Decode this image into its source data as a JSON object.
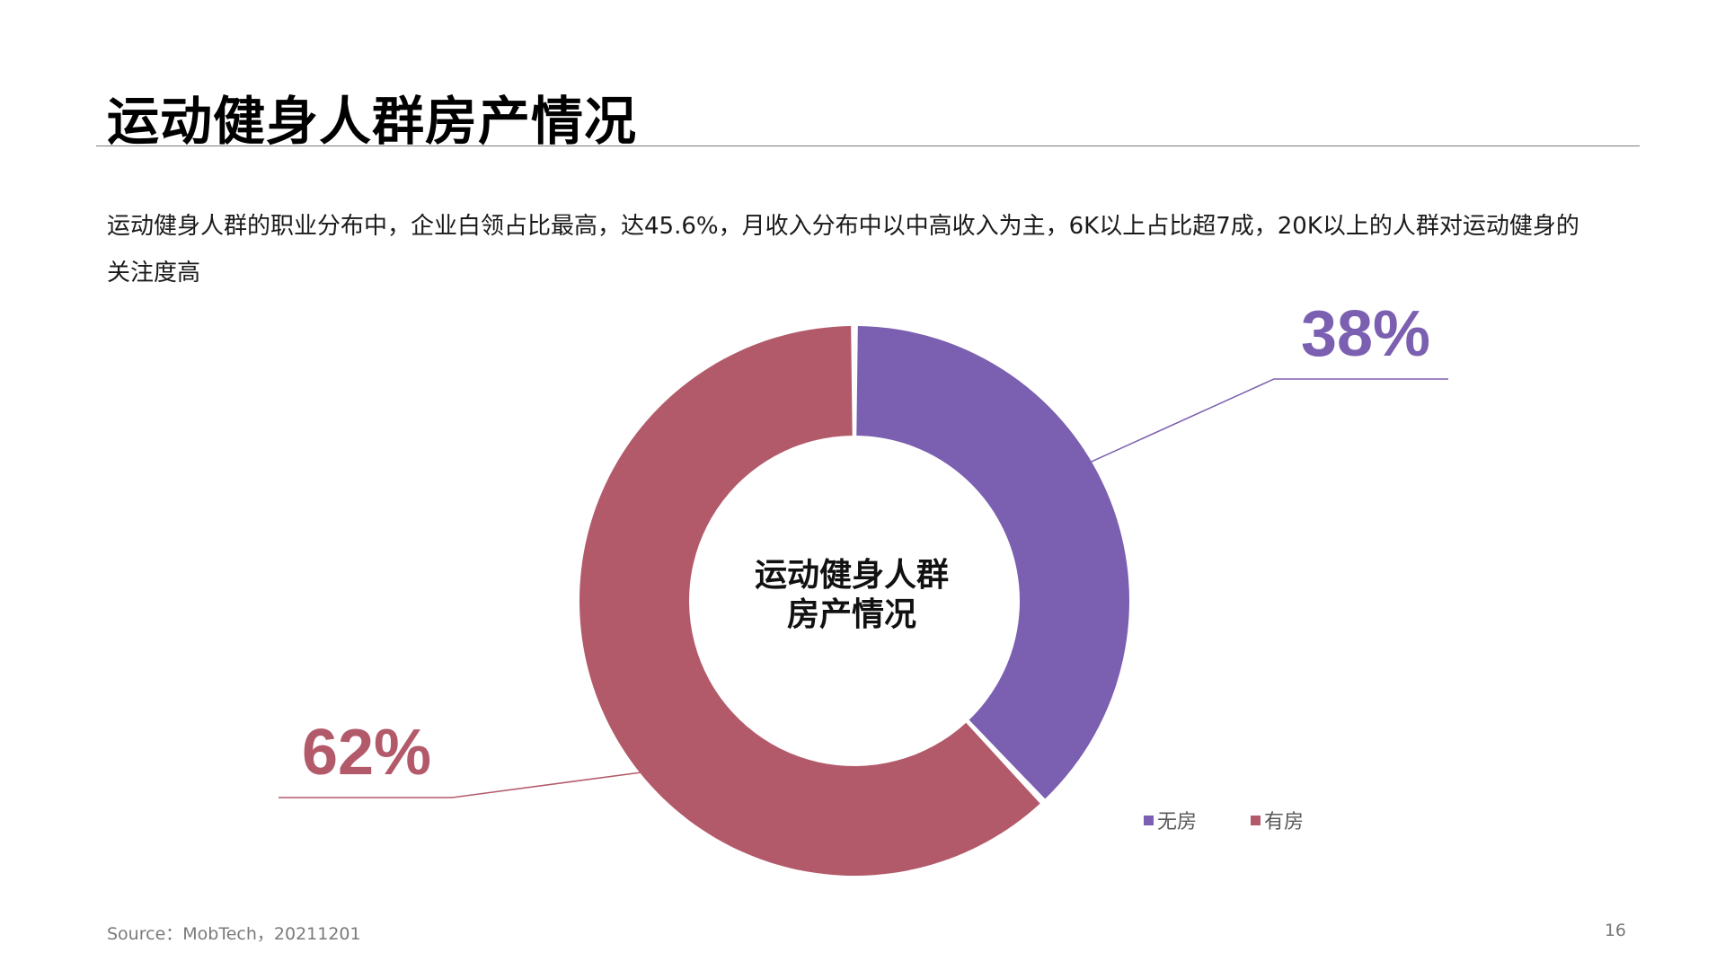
{
  "slide": {
    "title": "运动健身人群房产情况",
    "description": "运动健身人群的职业分布中，企业白领占比最高，达45.6%，月收入分布中以中高收入为主，6K以上占比超7成，20K以上的人群对运动健身的关注度高",
    "source": "Source：MobTech，20211201",
    "page_number": "16"
  },
  "chart_data": {
    "type": "pie",
    "donut": true,
    "center_label": [
      "运动健身人群",
      "房产情况"
    ],
    "categories": [
      "无房",
      "有房"
    ],
    "values": [
      38,
      62
    ],
    "data_labels": [
      "38%",
      "62%"
    ],
    "colors": [
      "#7b5fb0",
      "#b35a6a"
    ],
    "legend_position": "bottom-right"
  }
}
